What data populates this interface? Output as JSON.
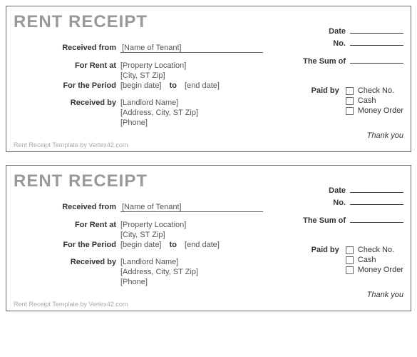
{
  "receipt": {
    "title": "RENT RECEIPT",
    "date_label": "Date",
    "no_label": "No.",
    "received_from_label": "Received from",
    "tenant_placeholder": "[Name of Tenant]",
    "sum_label": "The Sum of",
    "for_rent_label": "For Rent at",
    "property_placeholder": "[Property Location]",
    "city_placeholder": "[City, ST  Zip]",
    "period_label": "For the Period",
    "begin_placeholder": "[begin date]",
    "to_label": "to",
    "end_placeholder": "[end date]",
    "paidby_label": "Paid by",
    "opt_check": "Check No.",
    "opt_cash": "Cash",
    "opt_money": "Money Order",
    "received_by_label": "Received by",
    "landlord_placeholder": "[Landlord Name]",
    "address_placeholder": "[Address, City, ST  Zip]",
    "phone_placeholder": "[Phone]",
    "thanks": "Thank you",
    "footer": "Rent Receipt Template by Vertex42.com"
  }
}
